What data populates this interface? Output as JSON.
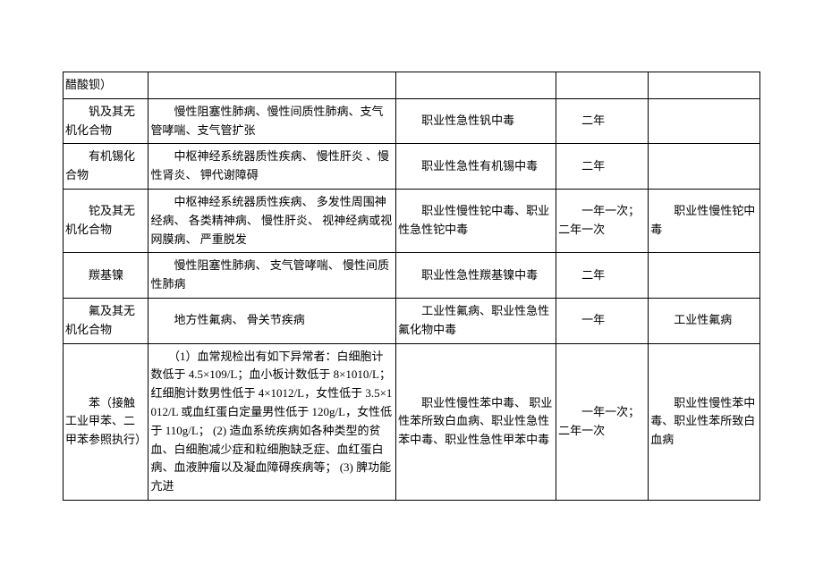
{
  "table": {
    "colWidths": [
      "88px",
      "255px",
      "165px",
      "95px",
      "115px"
    ],
    "rows": [
      {
        "c0": "醋酸钡）",
        "c1": "",
        "c2": "",
        "c3": "",
        "c4": ""
      },
      {
        "c0": "　　钒及其无机化合物",
        "c1": "　　慢性阻塞性肺病、慢性间质性肺病、支气管哮喘、支气管扩张",
        "c2": "　　职业性急性钒中毒",
        "c3": "　　二年",
        "c4": ""
      },
      {
        "c0": "　　有机锡化合物",
        "c1": "　　中枢神经系统器质性疾病、 慢性肝炎 、慢性肾炎、 钾代谢障碍",
        "c2": "　　职业性急性有机锡中毒",
        "c3": "　　二年",
        "c4": ""
      },
      {
        "c0": "　　铊及其无机化合物",
        "c1": "　　中枢神经系统器质性疾病、 多发性周围神经病、 各类精神病、 慢性肝炎、 视神经病或视网膜病、 严重脱发",
        "c2": "　　职业性慢性铊中毒、职业性急性铊中毒",
        "c3": "　　一年一次；二年一次",
        "c4": "　　职业性慢性铊中毒"
      },
      {
        "c0": "　　羰基镍",
        "c1": "　　慢性阻塞性肺病、 支气管哮喘、 慢性间质性肺病",
        "c2": "　　职业性急性羰基镍中毒",
        "c3": "　　二年",
        "c4": ""
      },
      {
        "c0": "　　氟及其无机化合物",
        "c1": "　　地方性氟病、 骨关节疾病",
        "c2": "　　工业性氟病、职业性急性氟化物中毒",
        "c3": "　　一年",
        "c4": "　　工业性氟病"
      },
      {
        "c0": "　　苯（接触工业甲苯、二甲苯参照执行）",
        "c1": "　　（1）血常规检出有如下异常者：白细胞计数低于 4.5×109/L；血小板计数低于 8×1010/L；红细胞计数男性低于 4×1012/L，女性低于 3.5×1012/L 或血红蛋白定量男性低于 120g/L，女性低于 110g/L；\n(2)  造血系统疾病如各种类型的贫血、白细胞减少症和粒细胞缺乏症、血红蛋白病、血液肿瘤以及凝血障碍疾病等；  (3)  脾功能亢进",
        "c2": "　　职业性慢性苯中毒、 职业性苯所致白血病、职业性急性苯中毒、职业性急性甲苯中毒",
        "c3": "　　一年一次；二年一次",
        "c4": "　　职业性慢性苯中毒、职业性苯所致白血病"
      }
    ]
  }
}
